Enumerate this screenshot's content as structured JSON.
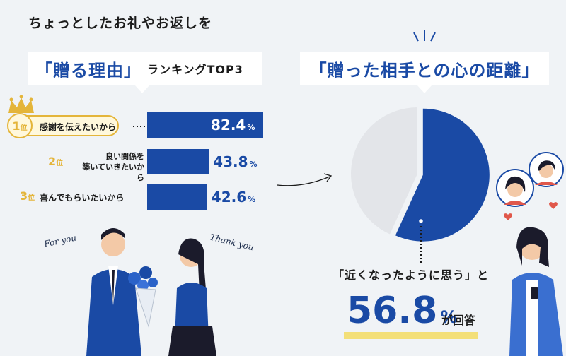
{
  "header": {
    "subtitle": "ちょっとしたお礼やお返しを",
    "left_title_main": "「贈る理由」",
    "left_title_tail": "ランキングTOP3",
    "right_title": "「贈った相手との心の距離」"
  },
  "ranking": [
    {
      "rank": "1",
      "rank_suffix": "位",
      "label_lines": [
        "感謝を伝えたいから"
      ]
    },
    {
      "rank": "2",
      "rank_suffix": "位",
      "label_lines": [
        "良い関係を",
        "築いていきたいから"
      ]
    },
    {
      "rank": "3",
      "rank_suffix": "位",
      "label_lines": [
        "喜んでもらいたいから"
      ]
    }
  ],
  "percent_sign": "%",
  "answer": {
    "label": "「近くなったように思う」と",
    "value": "56.8",
    "tail": "が回答"
  },
  "illustration_text": {
    "for_you": "For you",
    "thank_you": "Thank you"
  },
  "colors": {
    "primary": "#1a4aa5",
    "gold": "#e4b53a",
    "pie_rest": "#e3e5e9",
    "highlight": "#f3df78"
  },
  "icons": [
    "crown-icon",
    "heart-icon",
    "arrow-icon"
  ],
  "chart_data": [
    {
      "type": "bar",
      "categories": [
        "感謝を伝えたいから",
        "良い関係を築いていきたいから",
        "喜んでもらいたいから"
      ],
      "values": [
        82.4,
        43.8,
        42.6
      ],
      "unit": "%",
      "ylim": [
        0,
        100
      ]
    },
    {
      "type": "pie",
      "labels": [
        "近くなったように思う",
        ""
      ],
      "values": [
        56.8,
        43.2
      ],
      "unit": "%"
    }
  ]
}
